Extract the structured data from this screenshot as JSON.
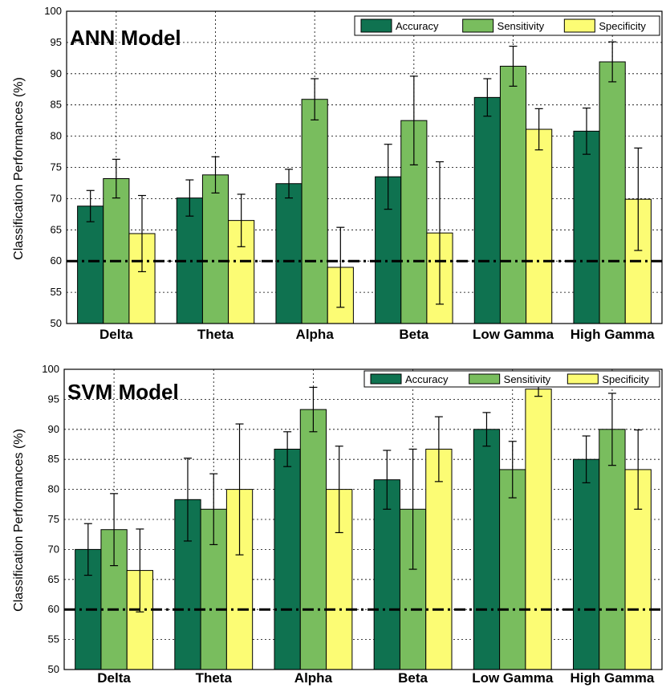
{
  "colors": {
    "Accuracy": "#0f7250",
    "Sensitivity": "#79bd5e",
    "Specificity": "#fcfc74"
  },
  "chart_data": [
    {
      "type": "bar",
      "title": "ANN Model",
      "ylabel": "Classification Performances (%)",
      "xlabel": "",
      "ylim": [
        50,
        100
      ],
      "yticks": [
        50,
        55,
        60,
        65,
        70,
        75,
        80,
        85,
        90,
        95,
        100
      ],
      "reference_line": 60,
      "grid": true,
      "legend_position": "top-right",
      "categories": [
        "Delta",
        "Theta",
        "Alpha",
        "Beta",
        "Low Gamma",
        "High Gamma"
      ],
      "series": [
        {
          "name": "Accuracy",
          "values": [
            68.8,
            70.1,
            72.4,
            73.5,
            86.2,
            80.8
          ],
          "error": [
            2.5,
            2.9,
            2.3,
            5.2,
            3.0,
            3.7
          ]
        },
        {
          "name": "Sensitivity",
          "values": [
            73.2,
            73.8,
            85.9,
            82.5,
            91.2,
            91.9
          ],
          "error": [
            3.1,
            2.9,
            3.3,
            7.1,
            3.2,
            3.2
          ]
        },
        {
          "name": "Specificity",
          "values": [
            64.4,
            66.5,
            59.0,
            64.5,
            81.1,
            69.9
          ],
          "error": [
            6.1,
            4.2,
            6.4,
            11.4,
            3.3,
            8.2
          ]
        }
      ]
    },
    {
      "type": "bar",
      "title": "SVM Model",
      "ylabel": "Classification Performances (%)",
      "xlabel": "",
      "ylim": [
        50,
        100
      ],
      "yticks": [
        50,
        55,
        60,
        65,
        70,
        75,
        80,
        85,
        90,
        95,
        100
      ],
      "reference_line": 60,
      "grid": true,
      "legend_position": "top-right",
      "categories": [
        "Delta",
        "Theta",
        "Alpha",
        "Beta",
        "Low Gamma",
        "High Gamma"
      ],
      "series": [
        {
          "name": "Accuracy",
          "values": [
            70.0,
            78.3,
            86.7,
            81.6,
            90.0,
            85.0
          ],
          "error": [
            4.3,
            6.9,
            2.9,
            4.9,
            2.8,
            3.9
          ]
        },
        {
          "name": "Sensitivity",
          "values": [
            73.3,
            76.7,
            93.3,
            76.7,
            83.3,
            90.0
          ],
          "error": [
            6.0,
            5.9,
            3.7,
            10.0,
            4.7,
            6.0
          ]
        },
        {
          "name": "Specificity",
          "values": [
            66.5,
            80.0,
            80.0,
            86.7,
            96.7,
            83.3
          ],
          "error": [
            6.9,
            10.9,
            7.2,
            5.4,
            1.2,
            6.6
          ]
        }
      ]
    }
  ]
}
